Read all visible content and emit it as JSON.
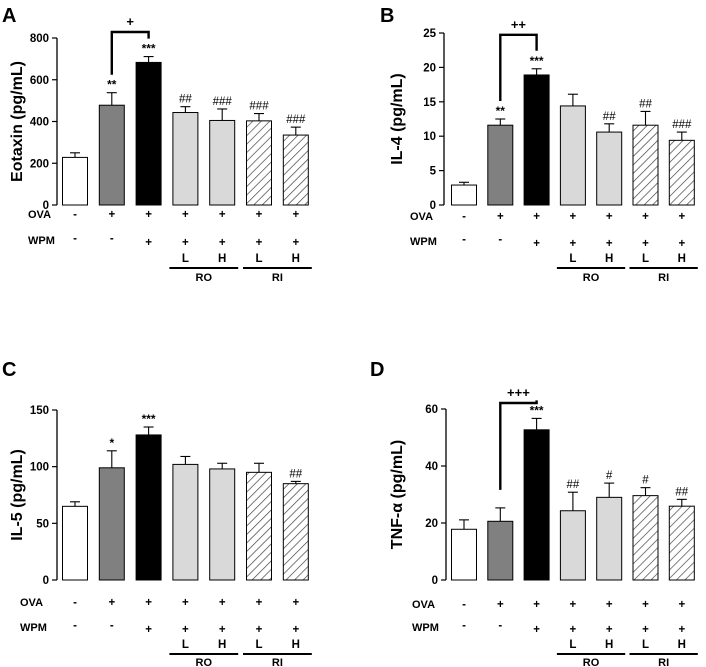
{
  "figure": {
    "colors": {
      "control": "#ffffff",
      "ova": "#808080",
      "wpm": "#000000",
      "ro": "#d9d9d9",
      "ri_bg": "#ffffff",
      "ri_hatch": "#444444",
      "axis": "#000000"
    },
    "groups": [
      {
        "key": "control",
        "ova": "-",
        "wpm": "-",
        "dose": ""
      },
      {
        "key": "ova",
        "ova": "+",
        "wpm": "-",
        "dose": ""
      },
      {
        "key": "wpm",
        "ova": "+",
        "wpm": "+",
        "dose": ""
      },
      {
        "key": "ro_l",
        "ova": "+",
        "wpm": "+",
        "dose": "L"
      },
      {
        "key": "ro_h",
        "ova": "+",
        "wpm": "+",
        "dose": "H"
      },
      {
        "key": "ri_l",
        "ova": "+",
        "wpm": "+",
        "dose": "L"
      },
      {
        "key": "ri_h",
        "ova": "+",
        "wpm": "+",
        "dose": "H"
      }
    ],
    "row_labels": {
      "ova": "OVA",
      "wpm": "WPM"
    },
    "group_labels": {
      "ro": "RO",
      "ri": "RI"
    }
  },
  "chart_data": [
    {
      "panel": "A",
      "type": "bar",
      "ylabel": "Eotaxin (pg/mL)",
      "ylim": [
        0,
        800
      ],
      "yticks": [
        0,
        200,
        400,
        600,
        800
      ],
      "categories": [
        "control",
        "ova",
        "wpm",
        "ro_l",
        "ro_h",
        "ri_l",
        "ri_h"
      ],
      "values": [
        228,
        478,
        683,
        443,
        405,
        403,
        335
      ],
      "errors": [
        22,
        60,
        28,
        28,
        55,
        35,
        38
      ],
      "annotations": [
        "",
        "**",
        "***",
        "##",
        "###",
        "###",
        "###"
      ],
      "bracket": {
        "from": 1,
        "to": 2,
        "label": "+"
      }
    },
    {
      "panel": "B",
      "type": "bar",
      "ylabel": "IL-4 (pg/mL)",
      "ylim": [
        0,
        25
      ],
      "yticks": [
        0,
        5,
        10,
        15,
        20,
        25
      ],
      "categories": [
        "control",
        "ova",
        "wpm",
        "ro_l",
        "ro_h",
        "ri_l",
        "ri_h"
      ],
      "values": [
        2.9,
        11.6,
        18.9,
        14.4,
        10.6,
        11.6,
        9.4
      ],
      "errors": [
        0.4,
        0.9,
        0.9,
        1.7,
        1.2,
        2.0,
        1.2
      ],
      "annotations": [
        "",
        "**",
        "***",
        "",
        "##",
        "##",
        "###"
      ],
      "bracket": {
        "from": 1,
        "to": 2,
        "label": "++"
      }
    },
    {
      "panel": "C",
      "type": "bar",
      "ylabel": "IL-5 (pg/mL)",
      "ylim": [
        0,
        150
      ],
      "yticks": [
        0,
        50,
        100,
        150
      ],
      "categories": [
        "control",
        "ova",
        "wpm",
        "ro_l",
        "ro_h",
        "ri_l",
        "ri_h"
      ],
      "values": [
        65,
        99,
        128,
        102,
        98,
        95,
        85
      ],
      "errors": [
        4,
        15,
        7,
        7,
        5,
        8,
        2
      ],
      "annotations": [
        "",
        "*",
        "***",
        "",
        "",
        "",
        "##"
      ],
      "bracket": null
    },
    {
      "panel": "D",
      "type": "bar",
      "ylabel": "TNF-α (pg/mL)",
      "ylim": [
        0,
        60
      ],
      "yticks": [
        0,
        20,
        40,
        60
      ],
      "categories": [
        "control",
        "ova",
        "wpm",
        "ro_l",
        "ro_h",
        "ri_l",
        "ri_h"
      ],
      "values": [
        17.8,
        20.6,
        52.7,
        24.3,
        29.0,
        29.6,
        25.9
      ],
      "errors": [
        3.3,
        4.7,
        4.0,
        6.5,
        5.0,
        2.8,
        2.4
      ],
      "annotations": [
        "",
        "",
        "***",
        "##",
        "#",
        "#",
        "##"
      ],
      "bracket": {
        "from": 1,
        "to": 2,
        "label": "+++"
      }
    }
  ]
}
